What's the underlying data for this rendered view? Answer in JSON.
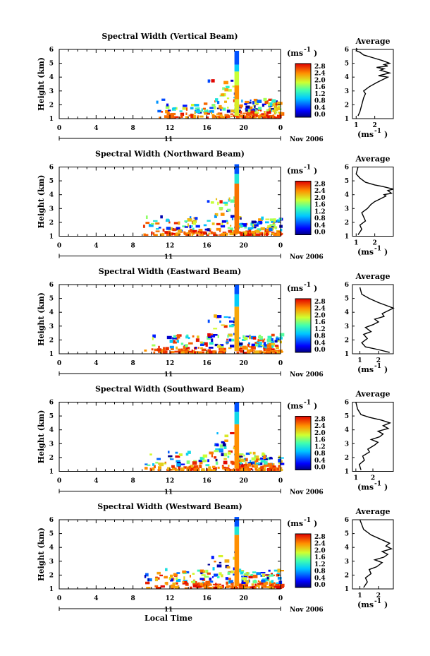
{
  "figure": {
    "x_axis_label": "Local Time",
    "date_day": "11",
    "date_month_year": "Nov 2006",
    "colorbar_unit": "(ms",
    "unit_exponent": "-1",
    "y_axis_label": "Height (km)",
    "side_title": "Average",
    "side_unit": "(ms",
    "x_tick_labels": [
      "0",
      "4",
      "8",
      "12",
      "16",
      "20",
      "0"
    ],
    "y_tick_labels": [
      "1",
      "2",
      "3",
      "4",
      "5",
      "6"
    ],
    "colorbar_tick_labels": [
      "2.8",
      "2.4",
      "2.0",
      "1.6",
      "1.2",
      "0.8",
      "0.4",
      "0.0"
    ]
  },
  "chart_data": [
    {
      "type": "heatmap",
      "title": "Spectral Width (Vertical Beam)",
      "xlabel": "",
      "ylabel": "Height (km)",
      "xlim": [
        0,
        24
      ],
      "ylim": [
        1,
        6
      ],
      "colorbar": {
        "unit": "ms-1",
        "range": [
          0.0,
          2.8
        ],
        "ticks": [
          0.0,
          0.4,
          0.8,
          1.2,
          1.6,
          2.0,
          2.4,
          2.8
        ]
      },
      "data_onset_hour": 10.5,
      "cells": [
        {
          "t0": 19,
          "t1": 19.5,
          "h0": 4.9,
          "h1": 5.9,
          "v": 0.6
        },
        {
          "t0": 19,
          "t1": 19.5,
          "h0": 4.4,
          "h1": 4.9,
          "v": 1.0
        },
        {
          "t0": 19,
          "t1": 19.5,
          "h0": 3.4,
          "h1": 4.4,
          "v": 1.8
        },
        {
          "t0": 19,
          "t1": 19.5,
          "h0": 2.4,
          "h1": 3.4,
          "v": 2.3
        },
        {
          "t0": 19,
          "t1": 19.5,
          "h0": 1.2,
          "h1": 2.4,
          "v": 1.9
        }
      ],
      "side": {
        "title": "Average",
        "xticks": [
          "1",
          "2"
        ],
        "xlim": [
          0.8,
          3.0
        ],
        "ylim": [
          1,
          6
        ],
        "x": [
          1.1,
          1.2,
          1.3,
          1.4,
          1.5,
          1.4,
          1.7,
          2.1,
          2.4,
          2.7,
          2.2,
          2.5,
          2.8,
          2.3,
          2.5,
          2.1,
          2.7,
          2.5,
          2.8,
          2.4,
          1.9,
          1.4,
          1.2,
          1.0,
          1.05,
          1.0
        ],
        "h": [
          1.2,
          1.5,
          2.0,
          2.5,
          2.8,
          3.0,
          3.3,
          3.6,
          3.8,
          4.0,
          4.1,
          4.2,
          4.3,
          4.5,
          4.6,
          4.7,
          4.8,
          4.9,
          5.0,
          5.2,
          5.4,
          5.6,
          5.8,
          5.9,
          6.0,
          6.1
        ]
      }
    },
    {
      "type": "heatmap",
      "title": "Spectral Width (Northward Beam)",
      "xlabel": "",
      "ylabel": "Height (km)",
      "xlim": [
        0,
        24
      ],
      "ylim": [
        1,
        6
      ],
      "colorbar": {
        "unit": "ms-1",
        "range": [
          0.0,
          2.8
        ],
        "ticks": [
          0.0,
          0.4,
          0.8,
          1.2,
          1.6,
          2.0,
          2.4,
          2.8
        ]
      },
      "data_onset_hour": 9.0,
      "cells": [
        {
          "t0": 19,
          "t1": 19.5,
          "h0": 5.5,
          "h1": 6.2,
          "v": 0.6
        },
        {
          "t0": 19,
          "t1": 19.5,
          "h0": 4.8,
          "h1": 5.5,
          "v": 1.2
        },
        {
          "t0": 19,
          "t1": 19.5,
          "h0": 1.2,
          "h1": 4.8,
          "v": 2.4
        }
      ],
      "side": {
        "title": "Average",
        "xticks": [
          "1",
          "2"
        ],
        "xlim": [
          0.8,
          3.0
        ],
        "ylim": [
          1,
          6
        ],
        "x": [
          1.1,
          1.3,
          1.2,
          1.5,
          1.4,
          1.3,
          1.6,
          1.8,
          2.0,
          2.3,
          2.6,
          2.5,
          2.9,
          2.7,
          3.0,
          2.4,
          2.0,
          1.5,
          1.2,
          1.0,
          1.1
        ],
        "h": [
          1.1,
          1.5,
          1.8,
          2.1,
          2.4,
          2.7,
          3.0,
          3.3,
          3.5,
          3.7,
          3.9,
          4.0,
          4.1,
          4.3,
          4.4,
          4.6,
          4.7,
          4.9,
          5.2,
          5.5,
          6.0
        ]
      }
    },
    {
      "type": "heatmap",
      "title": "Spectral Width (Eastward Beam)",
      "xlabel": "",
      "ylabel": "Height (km)",
      "xlim": [
        0,
        24
      ],
      "ylim": [
        1,
        6
      ],
      "colorbar": {
        "unit": "ms-1",
        "range": [
          0.0,
          2.8
        ],
        "ticks": [
          0.0,
          0.4,
          0.8,
          1.2,
          1.6,
          2.0,
          2.4,
          2.8
        ]
      },
      "data_onset_hour": 9.0,
      "cells": [
        {
          "t0": 19,
          "t1": 19.5,
          "h0": 5.3,
          "h1": 6.0,
          "v": 0.6
        },
        {
          "t0": 19,
          "t1": 19.5,
          "h0": 4.4,
          "h1": 5.3,
          "v": 1.0
        },
        {
          "t0": 19,
          "t1": 19.5,
          "h0": 1.2,
          "h1": 4.4,
          "v": 2.2
        }
      ],
      "side": {
        "title": "Average",
        "xticks": [
          "1",
          "2"
        ],
        "xlim": [
          0.6,
          2.8
        ],
        "ylim": [
          1,
          6
        ],
        "x": [
          2.6,
          2.0,
          1.3,
          1.1,
          1.4,
          1.2,
          1.6,
          1.3,
          1.7,
          2.0,
          1.8,
          2.3,
          2.2,
          2.5,
          2.8,
          2.4,
          2.0,
          1.5,
          1.1,
          1.0
        ],
        "h": [
          1.1,
          1.3,
          1.5,
          1.8,
          2.1,
          2.4,
          2.6,
          2.9,
          3.1,
          3.3,
          3.5,
          3.7,
          3.9,
          4.1,
          4.3,
          4.5,
          4.7,
          5.0,
          5.3,
          5.8
        ]
      }
    },
    {
      "type": "heatmap",
      "title": "Spectral Width (Southward Beam)",
      "xlabel": "",
      "ylabel": "Height (km)",
      "xlim": [
        0,
        24
      ],
      "ylim": [
        1,
        6
      ],
      "colorbar": {
        "unit": "ms-1",
        "range": [
          0.0,
          2.8
        ],
        "ticks": [
          0.0,
          0.4,
          0.8,
          1.2,
          1.6,
          2.0,
          2.4,
          2.8
        ]
      },
      "data_onset_hour": 9.0,
      "cells": [
        {
          "t0": 19,
          "t1": 19.5,
          "h0": 5.3,
          "h1": 6.0,
          "v": 0.6
        },
        {
          "t0": 19,
          "t1": 19.5,
          "h0": 4.4,
          "h1": 5.3,
          "v": 1.1
        },
        {
          "t0": 19,
          "t1": 19.5,
          "h0": 1.2,
          "h1": 4.4,
          "v": 2.3
        }
      ],
      "side": {
        "title": "Average",
        "xticks": [
          "1",
          "2"
        ],
        "xlim": [
          0.8,
          3.2
        ],
        "ylim": [
          1,
          6
        ],
        "x": [
          1.3,
          1.2,
          1.5,
          1.4,
          1.8,
          1.7,
          2.1,
          2.3,
          1.9,
          2.4,
          2.6,
          2.3,
          2.9,
          2.6,
          3.0,
          2.5,
          1.8,
          1.3,
          1.1,
          1.0
        ],
        "h": [
          1.1,
          1.5,
          1.8,
          2.1,
          2.4,
          2.6,
          2.9,
          3.1,
          3.3,
          3.5,
          3.7,
          3.9,
          4.1,
          4.3,
          4.5,
          4.7,
          4.9,
          5.1,
          5.5,
          6.0
        ]
      }
    },
    {
      "type": "heatmap",
      "title": "Spectral Width (Westward Beam)",
      "xlabel": "Local Time",
      "ylabel": "Height (km)",
      "xlim": [
        0,
        24
      ],
      "ylim": [
        1,
        6
      ],
      "colorbar": {
        "unit": "ms-1",
        "range": [
          0.0,
          2.8
        ],
        "ticks": [
          0.0,
          0.4,
          0.8,
          1.2,
          1.6,
          2.0,
          2.4,
          2.8
        ]
      },
      "data_onset_hour": 9.0,
      "cells": [
        {
          "t0": 19,
          "t1": 19.5,
          "h0": 5.5,
          "h1": 6.2,
          "v": 0.6
        },
        {
          "t0": 19,
          "t1": 19.5,
          "h0": 4.9,
          "h1": 5.5,
          "v": 1.2
        },
        {
          "t0": 19,
          "t1": 19.5,
          "h0": 1.2,
          "h1": 4.9,
          "v": 2.3
        }
      ],
      "side": {
        "title": "Average",
        "xticks": [
          "1",
          "2"
        ],
        "xlim": [
          0.6,
          2.8
        ],
        "ylim": [
          1,
          6
        ],
        "x": [
          1.2,
          1.4,
          1.3,
          1.6,
          1.5,
          1.9,
          2.2,
          1.8,
          2.3,
          2.5,
          2.2,
          2.7,
          2.4,
          2.6,
          2.1,
          1.6,
          1.2,
          1.0
        ],
        "h": [
          1.1,
          1.5,
          1.8,
          2.1,
          2.4,
          2.6,
          2.9,
          3.1,
          3.3,
          3.5,
          3.7,
          3.9,
          4.1,
          4.3,
          4.6,
          4.9,
          5.3,
          6.0
        ]
      }
    }
  ]
}
